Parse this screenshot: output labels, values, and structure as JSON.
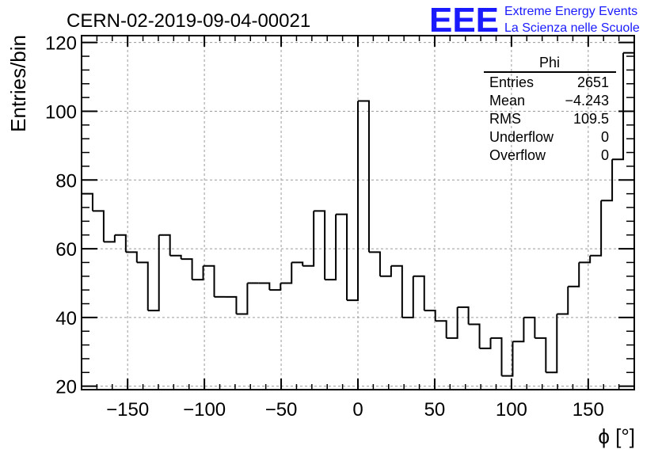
{
  "chart_data": {
    "type": "bar",
    "style": "step-histogram",
    "title": "CERN-02-2019-09-04-00021",
    "xlabel": "ϕ [°]",
    "ylabel": "Entries/bin",
    "xlim": [
      -180,
      180
    ],
    "ylim": [
      19,
      122
    ],
    "bin_width": 7.2,
    "grid": true,
    "x_ticks": [
      -150,
      -100,
      -50,
      0,
      50,
      100,
      150
    ],
    "x_tick_labels": [
      "−150",
      "−100",
      "−50",
      "0",
      "50",
      "100",
      "150"
    ],
    "y_ticks": [
      20,
      40,
      60,
      80,
      100,
      120
    ],
    "y_tick_labels": [
      "20",
      "40",
      "60",
      "80",
      "100",
      "120"
    ],
    "values": [
      76,
      71,
      62,
      64,
      59,
      56,
      42,
      64,
      58,
      57,
      51,
      55,
      46,
      46,
      41,
      50,
      50,
      48,
      50,
      56,
      55,
      71,
      51,
      70,
      45,
      103,
      59,
      52,
      55,
      40,
      52,
      42,
      39,
      34,
      43,
      38,
      31,
      34,
      23,
      33,
      40,
      34,
      24,
      41,
      49,
      56,
      58,
      74,
      86,
      117
    ],
    "stats_box": {
      "title": "Phi",
      "placement": "top-right",
      "rows": [
        {
          "label": "Entries",
          "value": "2651"
        },
        {
          "label": "Mean",
          "value": "−4.243"
        },
        {
          "label": "RMS",
          "value": "109.5"
        },
        {
          "label": "Underflow",
          "value": "0"
        },
        {
          "label": "Overflow",
          "value": "0"
        }
      ]
    }
  },
  "logo": {
    "mark": "EEE",
    "line1": "Extreme Energy Events",
    "line2": "La Scienza nelle Scuole",
    "color": "#1a1aff"
  }
}
